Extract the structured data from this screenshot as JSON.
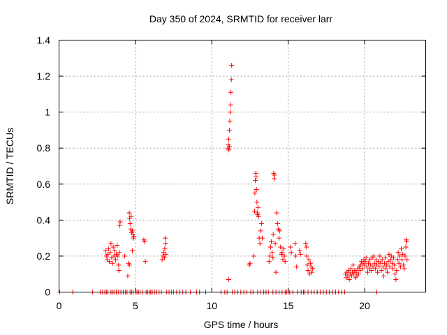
{
  "chart_data": {
    "type": "scatter",
    "title": "Day 350 of 2024, SRMTID for receiver larr",
    "xlabel": "GPS time / hours",
    "ylabel": "SRMTID / TECUs",
    "xlim": [
      0,
      24
    ],
    "ylim": [
      0,
      1.4
    ],
    "xticks": [
      0,
      5,
      10,
      15,
      20
    ],
    "xtick_labels": [
      "0",
      "5",
      "10",
      "15",
      "20"
    ],
    "yticks": [
      0,
      0.2,
      0.4,
      0.6,
      0.8,
      1.0,
      1.2,
      1.4
    ],
    "ytick_labels": [
      "0",
      "0.2",
      "0.4",
      "0.6",
      "0.8",
      "1",
      "1.2",
      "1.4"
    ],
    "grid": true,
    "marker": "+",
    "series": [
      {
        "name": "SRMTID",
        "color": "#ff0000",
        "points": [
          [
            0.05,
            0
          ],
          [
            0.9,
            0
          ],
          [
            2.2,
            0
          ],
          [
            2.7,
            0
          ],
          [
            2.85,
            0
          ],
          [
            3.0,
            0
          ],
          [
            3.1,
            0
          ],
          [
            3.2,
            0
          ],
          [
            3.05,
            0.23
          ],
          [
            3.1,
            0.2
          ],
          [
            3.15,
            0.18
          ],
          [
            3.2,
            0.21
          ],
          [
            3.25,
            0.24
          ],
          [
            3.3,
            0.17
          ],
          [
            3.35,
            0.22
          ],
          [
            3.4,
            0.27
          ],
          [
            3.45,
            0.19
          ],
          [
            3.5,
            0.16
          ],
          [
            3.55,
            0.25
          ],
          [
            3.6,
            0.2
          ],
          [
            3.65,
            0.23
          ],
          [
            3.7,
            0.18
          ],
          [
            3.75,
            0.21
          ],
          [
            3.8,
            0.26
          ],
          [
            3.85,
            0.2
          ],
          [
            3.9,
            0.15
          ],
          [
            3.95,
            0.22
          ],
          [
            3.4,
            0.0
          ],
          [
            3.5,
            0.0
          ],
          [
            3.6,
            0.0
          ],
          [
            3.75,
            0.0
          ],
          [
            3.9,
            0.0
          ],
          [
            3.98,
            0.37
          ],
          [
            4.0,
            0.39
          ],
          [
            3.92,
            0.12
          ],
          [
            4.05,
            0.0
          ],
          [
            4.2,
            0.0
          ],
          [
            4.3,
            0.2
          ],
          [
            4.35,
            0.0
          ],
          [
            4.45,
            0.0
          ],
          [
            4.5,
            0.09
          ],
          [
            4.55,
            0.16
          ],
          [
            4.6,
            0.15
          ],
          [
            4.6,
            0.44
          ],
          [
            4.62,
            0.41
          ],
          [
            4.65,
            0.38
          ],
          [
            4.7,
            0.35
          ],
          [
            4.72,
            0.42
          ],
          [
            4.75,
            0.33
          ],
          [
            4.8,
            0.34
          ],
          [
            4.85,
            0.32
          ],
          [
            4.88,
            0.3
          ],
          [
            4.9,
            0.31
          ],
          [
            4.8,
            0.23
          ],
          [
            4.65,
            0.0
          ],
          [
            4.75,
            0.0
          ],
          [
            4.85,
            0.0
          ],
          [
            5.0,
            0.0
          ],
          [
            5.1,
            0.0
          ],
          [
            5.2,
            0.0
          ],
          [
            5.3,
            0.0
          ],
          [
            5.45,
            0.0
          ],
          [
            5.55,
            0.29
          ],
          [
            5.6,
            0.28
          ],
          [
            5.65,
            0.17
          ],
          [
            5.7,
            0.0
          ],
          [
            5.8,
            0.0
          ],
          [
            5.9,
            0.0
          ],
          [
            6.0,
            0.0
          ],
          [
            6.1,
            0.0
          ],
          [
            6.25,
            0.0
          ],
          [
            6.4,
            0.0
          ],
          [
            6.55,
            0.0
          ],
          [
            6.7,
            0.0
          ],
          [
            6.75,
            0.18
          ],
          [
            6.8,
            0.2
          ],
          [
            6.85,
            0.22
          ],
          [
            6.9,
            0.19
          ],
          [
            6.92,
            0.24
          ],
          [
            6.95,
            0.3
          ],
          [
            6.98,
            0.27
          ],
          [
            7.0,
            0.21
          ],
          [
            7.05,
            0.0
          ],
          [
            7.2,
            0.0
          ],
          [
            7.35,
            0.0
          ],
          [
            7.5,
            0.0
          ],
          [
            7.7,
            0.0
          ],
          [
            7.9,
            0.0
          ],
          [
            8.1,
            0.0
          ],
          [
            8.3,
            0.0
          ],
          [
            8.6,
            0.0
          ],
          [
            9.0,
            0.0
          ],
          [
            9.2,
            0.0
          ],
          [
            9.6,
            0.0
          ],
          [
            10.6,
            0.0
          ],
          [
            10.85,
            0.0
          ],
          [
            11.0,
            0.0
          ],
          [
            11.05,
            0.8
          ],
          [
            11.07,
            0.82
          ],
          [
            11.1,
            0.85
          ],
          [
            11.12,
            0.79
          ],
          [
            11.15,
            0.9
          ],
          [
            11.18,
            0.95
          ],
          [
            11.2,
            1.0
          ],
          [
            11.22,
            1.04
          ],
          [
            11.25,
            1.11
          ],
          [
            11.28,
            1.18
          ],
          [
            11.3,
            1.26
          ],
          [
            11.15,
            0.81
          ],
          [
            11.1,
            0.07
          ],
          [
            11.35,
            0.0
          ],
          [
            11.5,
            0.0
          ],
          [
            11.7,
            0.0
          ],
          [
            11.9,
            0.0
          ],
          [
            12.1,
            0.0
          ],
          [
            12.3,
            0.0
          ],
          [
            12.45,
            0.15
          ],
          [
            12.5,
            0.16
          ],
          [
            12.55,
            0.0
          ],
          [
            12.7,
            0.0
          ],
          [
            12.75,
            0.2
          ],
          [
            12.8,
            0.45
          ],
          [
            12.82,
            0.55
          ],
          [
            12.85,
            0.62
          ],
          [
            12.88,
            0.66
          ],
          [
            12.9,
            0.64
          ],
          [
            12.92,
            0.57
          ],
          [
            12.95,
            0.5
          ],
          [
            12.98,
            0.44
          ],
          [
            13.0,
            0.43
          ],
          [
            13.02,
            0.47
          ],
          [
            13.05,
            0.42
          ],
          [
            13.1,
            0.3
          ],
          [
            13.15,
            0.27
          ],
          [
            13.2,
            0.34
          ],
          [
            13.25,
            0.38
          ],
          [
            13.3,
            0.3
          ],
          [
            13.0,
            0.0
          ],
          [
            13.2,
            0.0
          ],
          [
            13.4,
            0.0
          ],
          [
            13.55,
            0.0
          ],
          [
            13.7,
            0.0
          ],
          [
            13.75,
            0.17
          ],
          [
            13.8,
            0.2
          ],
          [
            13.85,
            0.25
          ],
          [
            13.9,
            0.28
          ],
          [
            13.95,
            0.22
          ],
          [
            14.0,
            0.19
          ],
          [
            14.02,
            0.32
          ],
          [
            14.05,
            0.66
          ],
          [
            14.08,
            0.63
          ],
          [
            14.1,
            0.65
          ],
          [
            14.15,
            0.27
          ],
          [
            14.2,
            0.11
          ],
          [
            14.25,
            0.44
          ],
          [
            14.3,
            0.38
          ],
          [
            14.35,
            0.35
          ],
          [
            14.4,
            0.3
          ],
          [
            14.45,
            0.34
          ],
          [
            14.5,
            0.25
          ],
          [
            14.55,
            0.21
          ],
          [
            14.6,
            0.22
          ],
          [
            14.65,
            0.18
          ],
          [
            14.7,
            0.24
          ],
          [
            14.75,
            0.2
          ],
          [
            14.8,
            0.17
          ],
          [
            14.0,
            0.0
          ],
          [
            14.2,
            0.0
          ],
          [
            14.4,
            0.0
          ],
          [
            14.6,
            0.0
          ],
          [
            14.8,
            0.0
          ],
          [
            14.9,
            0.0
          ],
          [
            15.0,
            0.0
          ],
          [
            15.1,
            0.0
          ],
          [
            15.15,
            0.25
          ],
          [
            15.2,
            0.22
          ],
          [
            15.3,
            0.0
          ],
          [
            15.45,
            0.27
          ],
          [
            15.5,
            0.2
          ],
          [
            15.55,
            0.14
          ],
          [
            15.6,
            0.0
          ],
          [
            15.75,
            0.23
          ],
          [
            15.8,
            0.21
          ],
          [
            15.85,
            0.0
          ],
          [
            16.0,
            0.0
          ],
          [
            16.1,
            0.0
          ],
          [
            16.15,
            0.27
          ],
          [
            16.2,
            0.25
          ],
          [
            16.22,
            0.2
          ],
          [
            16.25,
            0.15
          ],
          [
            16.3,
            0.12
          ],
          [
            16.35,
            0.18
          ],
          [
            16.4,
            0.1
          ],
          [
            16.45,
            0.16
          ],
          [
            16.5,
            0.14
          ],
          [
            16.55,
            0.11
          ],
          [
            16.6,
            0.13
          ],
          [
            16.3,
            0.0
          ],
          [
            16.5,
            0.0
          ],
          [
            16.7,
            0.0
          ],
          [
            16.9,
            0.0
          ],
          [
            17.1,
            0.0
          ],
          [
            17.3,
            0.0
          ],
          [
            17.5,
            0.0
          ],
          [
            17.7,
            0.0
          ],
          [
            17.9,
            0.0
          ],
          [
            18.1,
            0.0
          ],
          [
            18.3,
            0.0
          ],
          [
            18.5,
            0.0
          ],
          [
            18.7,
            0.0
          ],
          [
            18.75,
            0.1
          ],
          [
            18.8,
            0.08
          ],
          [
            18.85,
            0.11
          ],
          [
            18.9,
            0.09
          ],
          [
            18.95,
            0.12
          ],
          [
            19.0,
            0.07
          ],
          [
            19.05,
            0.1
          ],
          [
            19.1,
            0.13
          ],
          [
            19.15,
            0.09
          ],
          [
            19.2,
            0.11
          ],
          [
            19.25,
            0.15
          ],
          [
            19.3,
            0.1
          ],
          [
            19.35,
            0.12
          ],
          [
            19.4,
            0.08
          ],
          [
            19.45,
            0.11
          ],
          [
            19.5,
            0.09
          ],
          [
            19.55,
            0.13
          ],
          [
            19.6,
            0.1
          ],
          [
            19.65,
            0.14
          ],
          [
            19.7,
            0.12
          ],
          [
            19.75,
            0.15
          ],
          [
            19.8,
            0.17
          ],
          [
            19.85,
            0.13
          ],
          [
            19.9,
            0.16
          ],
          [
            19.95,
            0.18
          ],
          [
            20.0,
            0.15
          ],
          [
            20.05,
            0.17
          ],
          [
            20.1,
            0.19
          ],
          [
            20.15,
            0.14
          ],
          [
            20.2,
            0.11
          ],
          [
            20.25,
            0.16
          ],
          [
            20.3,
            0.13
          ],
          [
            20.35,
            0.18
          ],
          [
            20.4,
            0.15
          ],
          [
            20.45,
            0.12
          ],
          [
            20.5,
            0.19
          ],
          [
            20.55,
            0.14
          ],
          [
            20.6,
            0.2
          ],
          [
            20.65,
            0.16
          ],
          [
            20.7,
            0.13
          ],
          [
            20.75,
            0.18
          ],
          [
            20.8,
            0.15
          ],
          [
            20.85,
            0.11
          ],
          [
            20.9,
            0.17
          ],
          [
            20.95,
            0.14
          ],
          [
            21.0,
            0.2
          ],
          [
            21.05,
            0.16
          ],
          [
            21.1,
            0.12
          ],
          [
            21.15,
            0.18
          ],
          [
            21.2,
            0.14
          ],
          [
            21.25,
            0.09
          ],
          [
            21.3,
            0.16
          ],
          [
            21.35,
            0.19
          ],
          [
            21.4,
            0.13
          ],
          [
            21.45,
            0.15
          ],
          [
            21.5,
            0.11
          ],
          [
            21.55,
            0.17
          ],
          [
            21.6,
            0.21
          ],
          [
            21.65,
            0.14
          ],
          [
            21.7,
            0.18
          ],
          [
            21.75,
            0.2
          ],
          [
            21.8,
            0.16
          ],
          [
            21.85,
            0.13
          ],
          [
            21.9,
            0.19
          ],
          [
            21.95,
            0.15
          ],
          [
            22.0,
            0.1
          ],
          [
            22.05,
            0.07
          ],
          [
            22.1,
            0.12
          ],
          [
            22.15,
            0.18
          ],
          [
            22.2,
            0.22
          ],
          [
            22.25,
            0.16
          ],
          [
            22.3,
            0.2
          ],
          [
            22.35,
            0.14
          ],
          [
            22.4,
            0.24
          ],
          [
            22.45,
            0.18
          ],
          [
            22.5,
            0.21
          ],
          [
            22.55,
            0.15
          ],
          [
            22.6,
            0.13
          ],
          [
            22.65,
            0.2
          ],
          [
            22.7,
            0.25
          ],
          [
            22.72,
            0.29
          ],
          [
            22.75,
            0.28
          ],
          [
            22.78,
            0.18
          ],
          [
            20.8,
            0.0
          ]
        ]
      }
    ]
  }
}
